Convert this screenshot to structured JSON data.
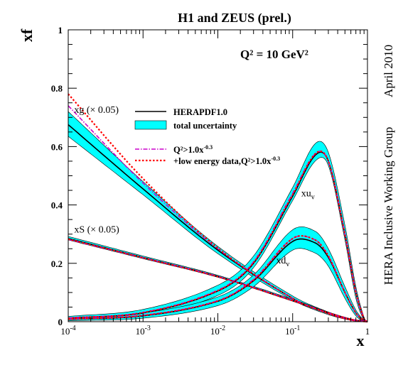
{
  "chart_data": {
    "type": "line",
    "title": "H1 and ZEUS (prel.)",
    "scale_label": "Q² = 10 GeV²",
    "side_label_top": "April 2010",
    "side_label_bottom": "HERA Inclusive Working Group",
    "ylabel": "xf",
    "xlabel": "x",
    "x_scale": "log",
    "xlim": [
      0.0001,
      1
    ],
    "ylim": [
      0,
      1
    ],
    "x_ticks": [
      {
        "value": 0.0001,
        "label": "10^-4"
      },
      {
        "value": 0.001,
        "label": "10^-3"
      },
      {
        "value": 0.01,
        "label": "10^-2"
      },
      {
        "value": 0.1,
        "label": "10^-1"
      },
      {
        "value": 1,
        "label": "1"
      }
    ],
    "y_ticks": [
      {
        "value": 0,
        "label": "0"
      },
      {
        "value": 0.2,
        "label": "0.2"
      },
      {
        "value": 0.4,
        "label": "0.4"
      },
      {
        "value": 0.6,
        "label": "0.6"
      },
      {
        "value": 0.8,
        "label": "0.8"
      },
      {
        "value": 1,
        "label": "1"
      }
    ],
    "grid": false,
    "legend": {
      "placement": "top-center",
      "entries": [
        {
          "label": "HERAPDF1.0",
          "style": "solid",
          "color": "#000000"
        },
        {
          "label": "total uncertainty",
          "style": "band",
          "color": "#00ffff"
        },
        {
          "label": "Q²>1.0x^-0.3",
          "style": "dashdot",
          "color": "#cc00cc"
        },
        {
          "label": "+low energy data,Q²>1.0x^-0.3",
          "style": "dotted",
          "color": "#ff0000"
        }
      ]
    },
    "annotations": [
      {
        "text": "xg (× 0.05)",
        "x": 0.00012,
        "y": 0.715
      },
      {
        "text": "xS (× 0.05)",
        "x": 0.00012,
        "y": 0.305
      },
      {
        "text": "xu_v",
        "x": 0.13,
        "y": 0.43
      },
      {
        "text": "xd_v",
        "x": 0.06,
        "y": 0.2
      }
    ],
    "series": [
      {
        "name": "xg (× 0.05)",
        "x": [
          0.0001,
          0.001,
          0.01,
          0.1,
          0.3,
          0.6,
          0.9,
          1.0
        ],
        "central": [
          0.675,
          0.455,
          0.245,
          0.08,
          0.028,
          0.006,
          0.001,
          0.0
        ],
        "band_low": [
          0.635,
          0.435,
          0.233,
          0.074,
          0.024,
          0.005,
          0.0,
          0.0
        ],
        "band_high": [
          0.72,
          0.48,
          0.258,
          0.088,
          0.033,
          0.008,
          0.002,
          0.0
        ],
        "alt1": [
          0.74,
          0.475,
          0.25,
          0.08,
          0.028,
          0.006,
          0.001,
          0.0
        ],
        "alt2": [
          0.78,
          0.49,
          0.252,
          0.08,
          0.028,
          0.006,
          0.001,
          0.0
        ]
      },
      {
        "name": "xS (× 0.05)",
        "x": [
          0.0001,
          0.001,
          0.01,
          0.1,
          0.3,
          0.6,
          0.9,
          1.0
        ],
        "central": [
          0.285,
          0.22,
          0.155,
          0.073,
          0.03,
          0.008,
          0.001,
          0.0
        ],
        "band_low": [
          0.28,
          0.216,
          0.152,
          0.07,
          0.027,
          0.006,
          0.0,
          0.0
        ],
        "band_high": [
          0.292,
          0.225,
          0.159,
          0.077,
          0.033,
          0.01,
          0.002,
          0.0
        ],
        "alt1": [
          0.282,
          0.219,
          0.155,
          0.073,
          0.03,
          0.008,
          0.001,
          0.0
        ],
        "alt2": [
          0.283,
          0.219,
          0.154,
          0.072,
          0.03,
          0.008,
          0.001,
          0.0
        ]
      },
      {
        "name": "xu_v",
        "x": [
          0.0001,
          0.001,
          0.01,
          0.03,
          0.1,
          0.2,
          0.3,
          0.5,
          0.7,
          0.9,
          1.0
        ],
        "central": [
          0.012,
          0.03,
          0.105,
          0.2,
          0.43,
          0.57,
          0.55,
          0.3,
          0.1,
          0.01,
          0.0
        ],
        "band_low": [
          0.006,
          0.02,
          0.09,
          0.185,
          0.415,
          0.55,
          0.535,
          0.28,
          0.08,
          0.005,
          0.0
        ],
        "band_high": [
          0.018,
          0.042,
          0.125,
          0.225,
          0.46,
          0.61,
          0.58,
          0.33,
          0.12,
          0.015,
          0.0
        ],
        "alt1": [
          0.013,
          0.032,
          0.108,
          0.205,
          0.44,
          0.575,
          0.55,
          0.3,
          0.1,
          0.01,
          0.0
        ],
        "alt2": [
          0.012,
          0.031,
          0.106,
          0.202,
          0.435,
          0.575,
          0.55,
          0.3,
          0.1,
          0.01,
          0.0
        ]
      },
      {
        "name": "xd_v",
        "x": [
          0.0001,
          0.001,
          0.01,
          0.03,
          0.1,
          0.2,
          0.3,
          0.5,
          0.7,
          0.9,
          1.0
        ],
        "central": [
          0.008,
          0.02,
          0.07,
          0.14,
          0.275,
          0.27,
          0.22,
          0.1,
          0.03,
          0.003,
          0.0
        ],
        "band_low": [
          0.003,
          0.012,
          0.055,
          0.12,
          0.245,
          0.235,
          0.19,
          0.08,
          0.02,
          0.001,
          0.0
        ],
        "band_high": [
          0.013,
          0.03,
          0.085,
          0.16,
          0.315,
          0.31,
          0.25,
          0.12,
          0.04,
          0.005,
          0.0
        ],
        "alt1": [
          0.009,
          0.022,
          0.072,
          0.145,
          0.285,
          0.28,
          0.225,
          0.1,
          0.03,
          0.003,
          0.0
        ],
        "alt2": [
          0.008,
          0.021,
          0.071,
          0.142,
          0.285,
          0.28,
          0.225,
          0.1,
          0.03,
          0.003,
          0.0
        ]
      }
    ]
  }
}
